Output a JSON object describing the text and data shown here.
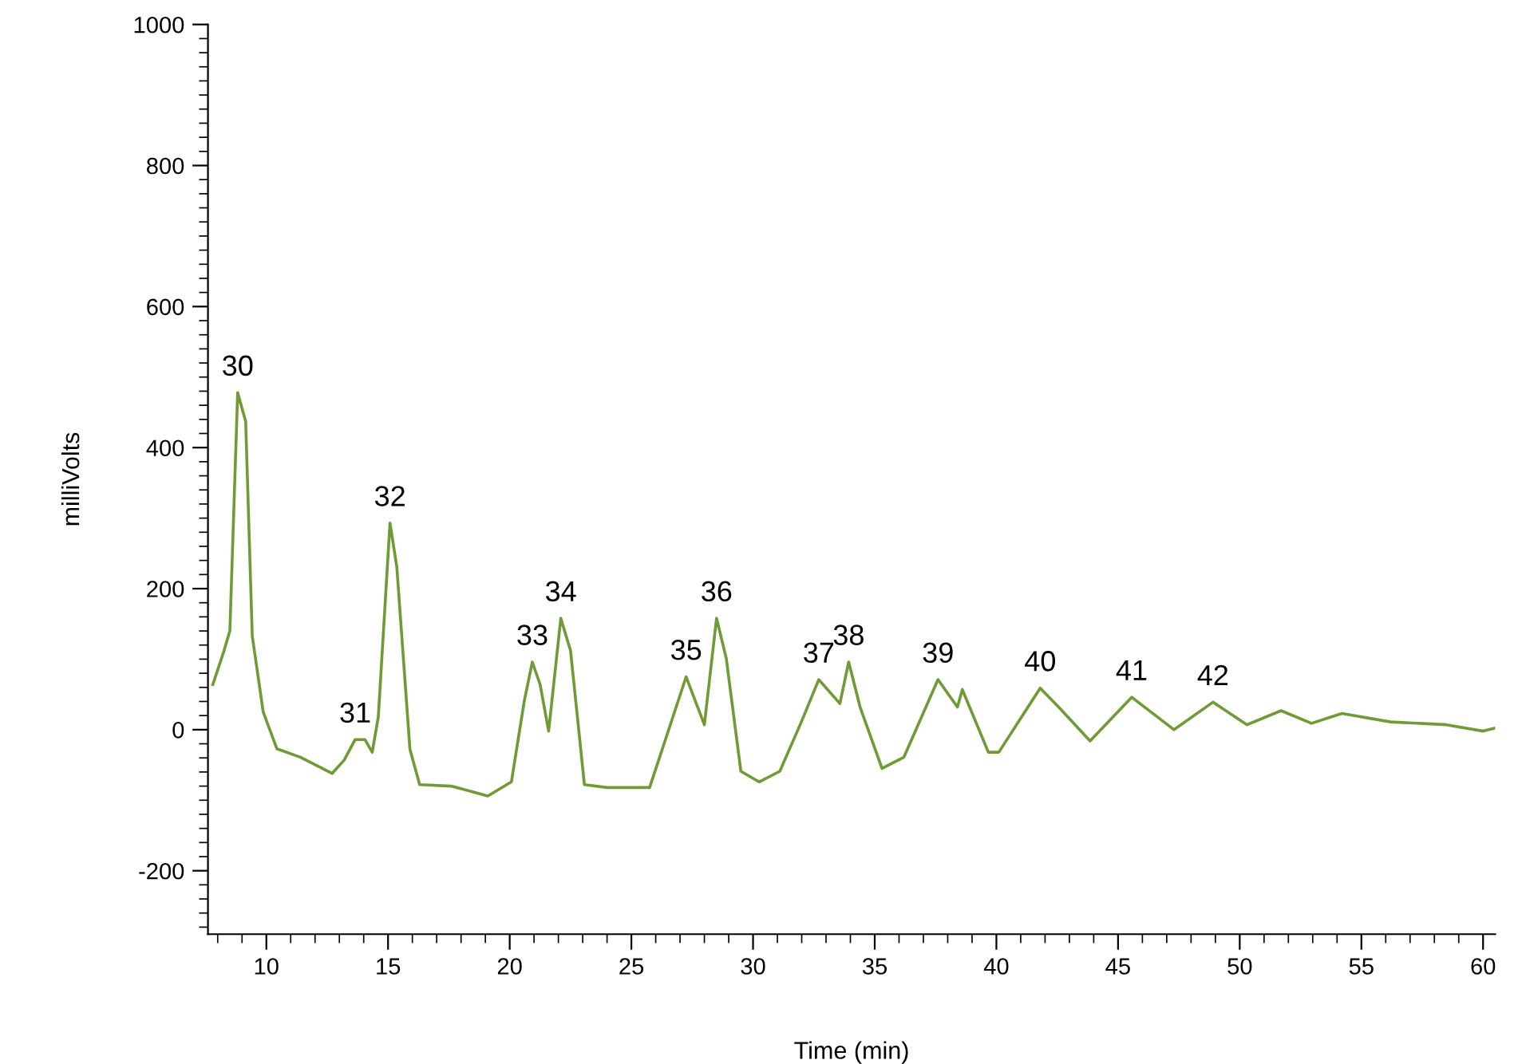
{
  "chart_data": {
    "type": "line",
    "xlabel": "Time (min)",
    "ylabel": "milliVolts",
    "xlim": [
      7.6,
      60.5
    ],
    "xticks": [
      10,
      15,
      20,
      25,
      30,
      35,
      40,
      45,
      50,
      55,
      60
    ],
    "ylim": [
      -290,
      1000
    ],
    "yticks": [
      -200,
      0,
      200,
      400,
      600,
      800,
      1000
    ],
    "marker": "none",
    "line_style": "solid",
    "series": [
      {
        "color": "#6f9a35",
        "x": [
          7.8,
          8.26,
          8.5,
          8.82,
          9.15,
          9.42,
          9.87,
          10.43,
          11.4,
          12.7,
          13.2,
          13.65,
          14.05,
          14.35,
          14.6,
          15.08,
          15.36,
          15.9,
          16.3,
          17.6,
          19.1,
          20.07,
          20.6,
          20.93,
          21.25,
          21.6,
          22.1,
          22.5,
          23.07,
          24.0,
          25.1,
          25.75,
          26.4,
          27.25,
          28.0,
          28.5,
          28.9,
          29.5,
          30.25,
          31.1,
          31.96,
          32.7,
          33.57,
          33.93,
          34.4,
          35.3,
          36.2,
          37.6,
          38.4,
          38.6,
          39.67,
          40.1,
          41.8,
          42.56,
          43.85,
          45.56,
          47.3,
          48.9,
          50.3,
          51.7,
          52.95,
          54.2,
          56.2,
          58.5,
          60.0,
          60.45
        ],
        "values": [
          64,
          112,
          140,
          478,
          437,
          133,
          25,
          -27,
          -39,
          -62,
          -43,
          -14,
          -14,
          -32,
          18,
          293,
          231,
          -28,
          -78,
          -80,
          -94,
          -74,
          41,
          96,
          64,
          -2,
          158,
          112,
          -78,
          -82,
          -82,
          -82,
          -14,
          75,
          7,
          158,
          101,
          -59,
          -74,
          -59,
          9,
          71,
          37,
          96,
          32,
          -55,
          -39,
          71,
          32,
          57,
          -32,
          -32,
          59,
          32,
          -16,
          46,
          0,
          39,
          7,
          27,
          9,
          23,
          11,
          7,
          -2,
          2
        ]
      }
    ],
    "annotations": [
      {
        "text": "30",
        "x": 8.82,
        "y": 478
      },
      {
        "text": "31",
        "x": 13.65,
        "y": -14
      },
      {
        "text": "32",
        "x": 15.08,
        "y": 293
      },
      {
        "text": "33",
        "x": 20.93,
        "y": 96
      },
      {
        "text": "34",
        "x": 22.1,
        "y": 158
      },
      {
        "text": "35",
        "x": 27.25,
        "y": 75
      },
      {
        "text": "36",
        "x": 28.5,
        "y": 158
      },
      {
        "text": "37",
        "x": 32.7,
        "y": 71
      },
      {
        "text": "38",
        "x": 33.93,
        "y": 96
      },
      {
        "text": "39",
        "x": 37.6,
        "y": 71
      },
      {
        "text": "40",
        "x": 41.8,
        "y": 59
      },
      {
        "text": "41",
        "x": 45.56,
        "y": 46
      },
      {
        "text": "42",
        "x": 48.9,
        "y": 39
      }
    ]
  }
}
